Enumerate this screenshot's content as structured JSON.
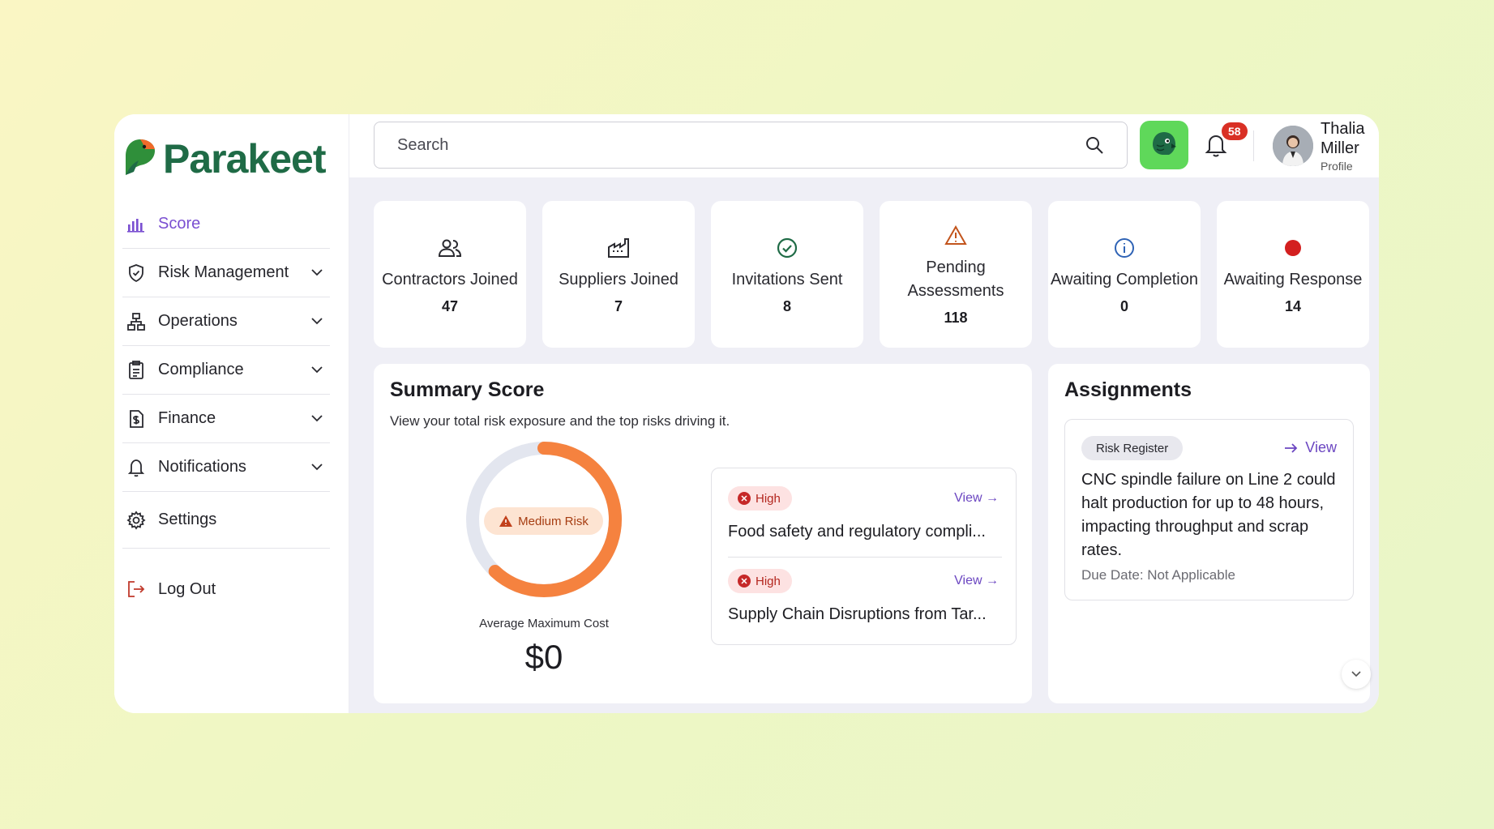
{
  "brand": {
    "name": "Parakeet"
  },
  "sidebar": {
    "items": [
      {
        "label": "Score",
        "icon": "bar-chart-icon"
      },
      {
        "label": "Risk Management",
        "icon": "shield-icon"
      },
      {
        "label": "Operations",
        "icon": "hierarchy-icon"
      },
      {
        "label": "Compliance",
        "icon": "clipboard-icon"
      },
      {
        "label": "Finance",
        "icon": "dollar-document-icon"
      },
      {
        "label": "Notifications",
        "icon": "bell-icon"
      },
      {
        "label": "Settings",
        "icon": "gear-icon"
      },
      {
        "label": "Log Out",
        "icon": "logout-icon"
      }
    ]
  },
  "topbar": {
    "search_placeholder": "Search",
    "notification_count": "58",
    "user": {
      "name": "Thalia Miller",
      "role": "Profile"
    }
  },
  "stats": [
    {
      "label": "Contractors Joined",
      "value": "47",
      "icon": "users-icon"
    },
    {
      "label": "Suppliers Joined",
      "value": "7",
      "icon": "factory-icon"
    },
    {
      "label": "Invitations Sent",
      "value": "8",
      "icon": "check-circle-icon"
    },
    {
      "label": "Pending Assessments",
      "value": "118",
      "icon": "warning-icon"
    },
    {
      "label": "Awaiting Completion",
      "value": "0",
      "icon": "info-icon"
    },
    {
      "label": "Awaiting Response",
      "value": "14",
      "icon": "red-dot-icon"
    }
  ],
  "summary": {
    "title": "Summary Score",
    "subtitle": "View your total risk exposure and the top risks driving it.",
    "risk_level": "Medium Risk",
    "gauge_fraction": 0.62,
    "metric_label": "Average Maximum Cost",
    "metric_value": "$0",
    "risks": [
      {
        "severity": "High",
        "action": "View →",
        "title": "Food safety and regulatory compli..."
      },
      {
        "severity": "High",
        "action": "View →",
        "title": "Supply Chain Disruptions from Tar..."
      }
    ]
  },
  "assignments": {
    "title": "Assignments",
    "card": {
      "tag": "Risk Register",
      "action": "View",
      "text": "CNC spindle failure on Line 2 could halt production for up to 48 hours, impacting throughput and scrap rates.",
      "due": "Due Date: Not Applicable"
    }
  },
  "colors": {
    "brand_green": "#1f6b46",
    "accent_purple": "#7a4fd1",
    "gauge_orange": "#f5823f",
    "badge_red": "#d93025"
  }
}
